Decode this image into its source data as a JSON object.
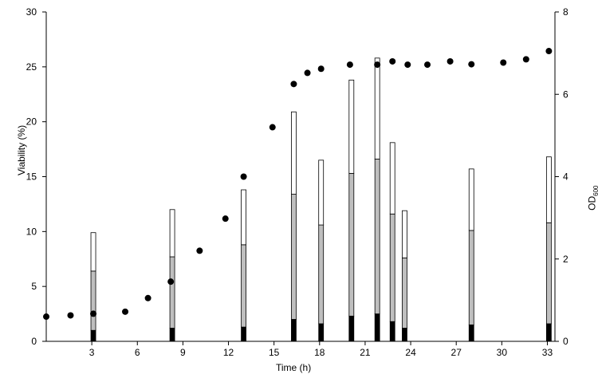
{
  "chart_data": {
    "type": "bar",
    "title": "",
    "xlabel": "Time (h)",
    "ylabel_left": "Viability (%)",
    "ylabel_right_main": "OD",
    "ylabel_right_sub": "600",
    "xlim": [
      0,
      33.5
    ],
    "ylim_left": [
      0,
      30
    ],
    "ylim_right": [
      0,
      8
    ],
    "x_ticks": [
      3,
      6,
      9,
      12,
      15,
      18,
      21,
      24,
      27,
      30,
      33
    ],
    "y_left_ticks": [
      0,
      5,
      10,
      15,
      20,
      25,
      30
    ],
    "y_right_ticks": [
      0,
      2,
      4,
      6,
      8
    ],
    "stacked_bars": {
      "x": [
        3.1,
        8.3,
        13.0,
        16.3,
        18.1,
        20.1,
        21.8,
        22.8,
        23.6,
        28.0,
        33.1
      ],
      "series": [
        {
          "color": "#000000",
          "values": [
            1.0,
            1.2,
            1.3,
            2.0,
            1.6,
            2.3,
            2.5,
            1.8,
            1.2,
            1.5,
            1.6
          ]
        },
        {
          "color": "#bfbfbf",
          "values": [
            5.4,
            6.5,
            7.5,
            11.4,
            9.0,
            13.0,
            14.1,
            9.8,
            6.4,
            8.6,
            9.2
          ]
        },
        {
          "color": "#ffffff",
          "values": [
            3.5,
            4.3,
            5.0,
            7.5,
            5.9,
            8.5,
            9.2,
            6.5,
            4.3,
            5.6,
            6.0
          ]
        }
      ]
    },
    "od600": {
      "color": "#000000",
      "x": [
        0.0,
        1.6,
        3.1,
        5.2,
        6.7,
        8.2,
        10.1,
        11.8,
        13.0,
        14.9,
        16.3,
        17.2,
        18.1,
        20.0,
        21.8,
        22.8,
        23.8,
        25.1,
        26.6,
        28.0,
        30.1,
        31.6,
        33.1
      ],
      "y": [
        0.6,
        0.63,
        0.67,
        0.72,
        1.05,
        1.45,
        2.2,
        2.98,
        4.0,
        5.2,
        6.25,
        6.52,
        6.62,
        6.72,
        6.72,
        6.8,
        6.72,
        6.72,
        6.8,
        6.73,
        6.77,
        6.85,
        7.05
      ]
    },
    "grid": false,
    "legend": "none"
  }
}
